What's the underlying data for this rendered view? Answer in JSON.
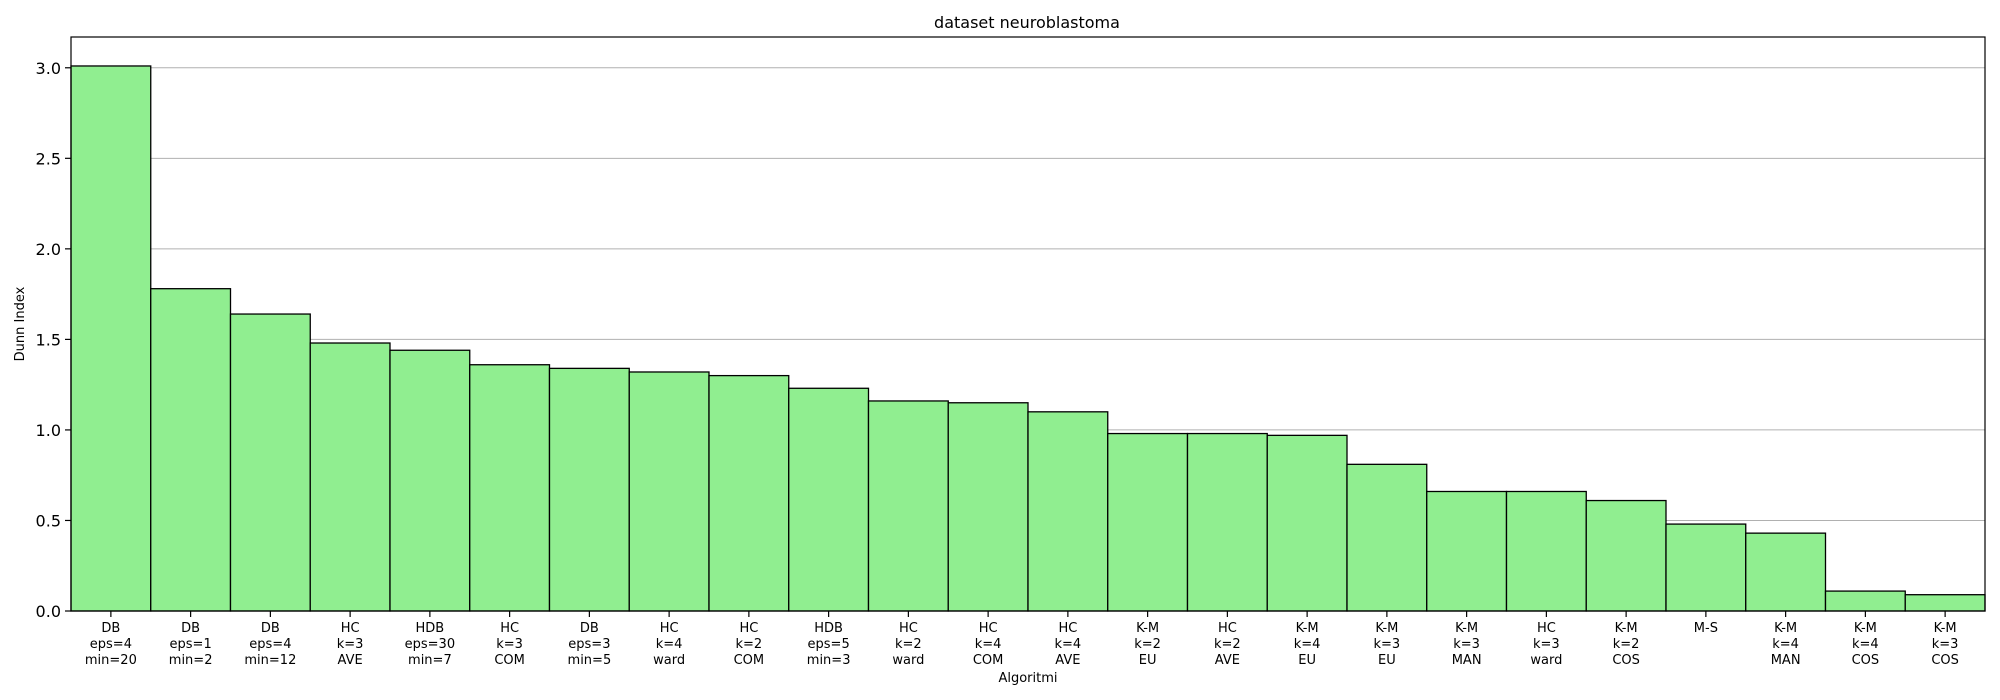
{
  "chart_data": {
    "type": "bar",
    "title": "dataset neuroblastoma",
    "xlabel": "Algoritmi",
    "ylabel": "Dunn Index",
    "ylim": [
      0,
      3.17
    ],
    "yticks": [
      "0.0",
      "0.5",
      "1.0",
      "1.5",
      "2.0",
      "2.5",
      "3.0"
    ],
    "grid": "y",
    "bar_color": "#90ee90",
    "categories": [
      [
        "DB",
        "eps=4",
        "min=20"
      ],
      [
        "DB",
        "eps=1",
        "min=2"
      ],
      [
        "DB",
        "eps=4",
        "min=12"
      ],
      [
        "HC",
        "k=3",
        "AVE"
      ],
      [
        "HDB",
        "eps=30",
        "min=7"
      ],
      [
        "HC",
        "k=3",
        "COM"
      ],
      [
        "DB",
        "eps=3",
        "min=5"
      ],
      [
        "HC",
        "k=4",
        "ward"
      ],
      [
        "HC",
        "k=2",
        "COM"
      ],
      [
        "HDB",
        "eps=5",
        "min=3"
      ],
      [
        "HC",
        "k=2",
        "ward"
      ],
      [
        "HC",
        "k=4",
        "COM"
      ],
      [
        "HC",
        "k=4",
        "AVE"
      ],
      [
        "K-M",
        "k=2",
        "EU"
      ],
      [
        "HC",
        "k=2",
        "AVE"
      ],
      [
        "K-M",
        "k=4",
        "EU"
      ],
      [
        "K-M",
        "k=3",
        "EU"
      ],
      [
        "K-M",
        "k=3",
        "MAN"
      ],
      [
        "HC",
        "k=3",
        "ward"
      ],
      [
        "K-M",
        "k=2",
        "COS"
      ],
      [
        "M-S"
      ],
      [
        "K-M",
        "k=4",
        "MAN"
      ],
      [
        "K-M",
        "k=4",
        "COS"
      ],
      [
        "K-M",
        "k=3",
        "COS"
      ]
    ],
    "values": [
      3.01,
      1.78,
      1.64,
      1.48,
      1.44,
      1.36,
      1.34,
      1.32,
      1.3,
      1.23,
      1.16,
      1.15,
      1.1,
      0.98,
      0.98,
      0.97,
      0.81,
      0.66,
      0.66,
      0.61,
      0.48,
      0.43,
      0.11,
      0.09
    ]
  }
}
